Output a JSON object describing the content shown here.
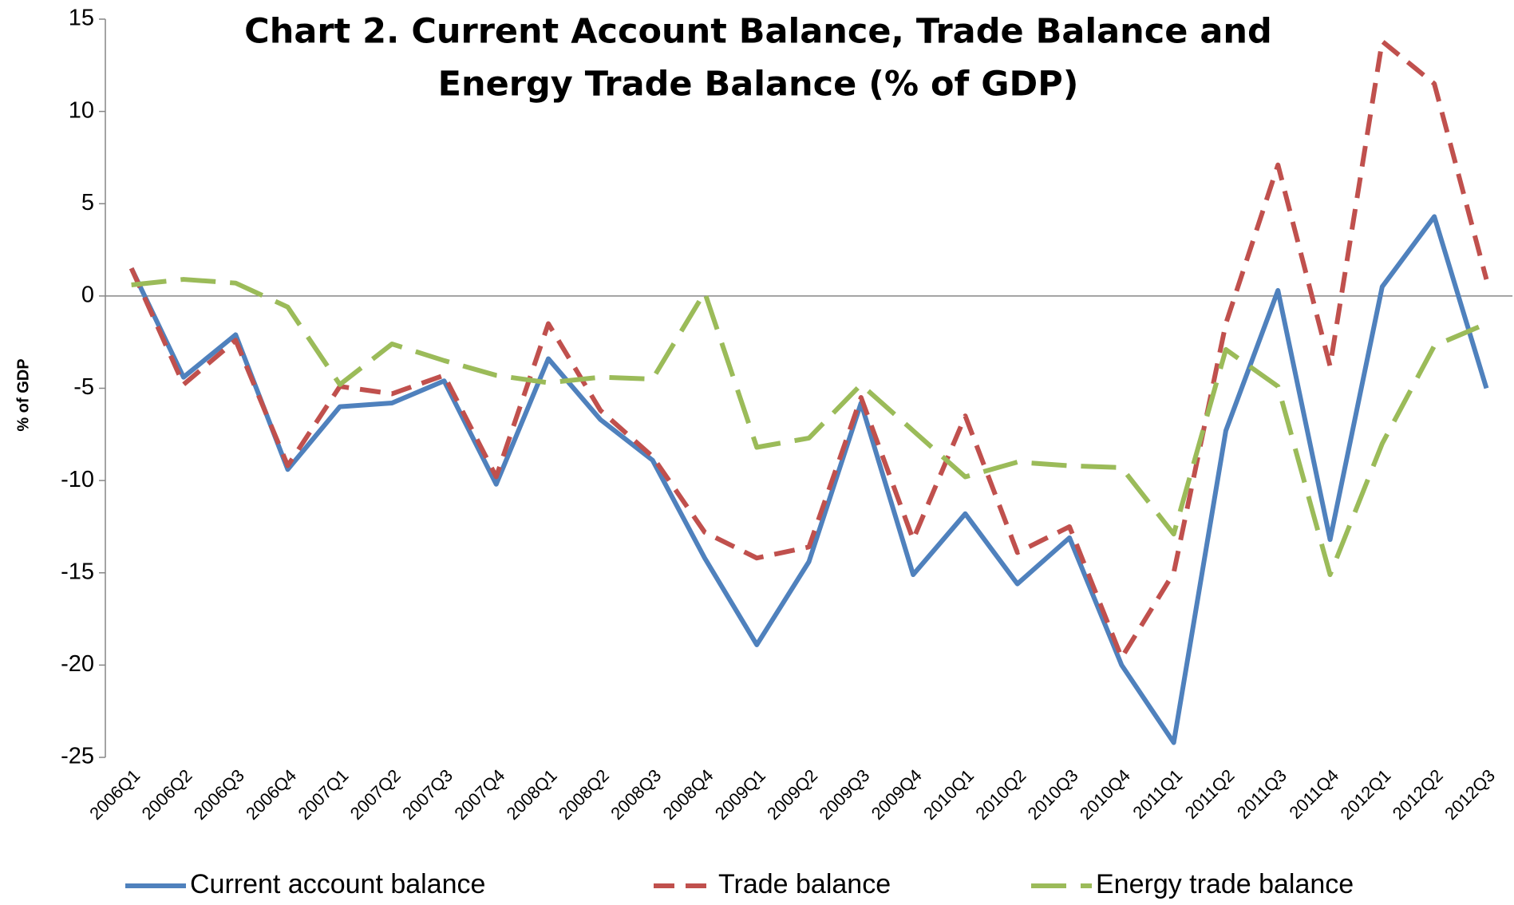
{
  "chart_data": {
    "type": "line",
    "title": [
      "Chart 2. Current Account Balance, Trade Balance and",
      "Energy Trade Balance (%  of GDP)"
    ],
    "ylabel": "% of GDP",
    "categories": [
      "2006Q1",
      "2006Q2",
      "2006Q3",
      "2006Q4",
      "2007Q1",
      "2007Q2",
      "2007Q3",
      "2007Q4",
      "2008Q1",
      "2008Q2",
      "2008Q3",
      "2008Q4",
      "2009Q1",
      "2009Q2",
      "2009Q3",
      "2009Q4",
      "2010Q1",
      "2010Q2",
      "2010Q3",
      "2010Q4",
      "2011Q1",
      "2011Q2",
      "2011Q3",
      "2011Q4",
      "2012Q1",
      "2012Q2",
      "2012Q3"
    ],
    "series": [
      {
        "name": "Current account balance",
        "color": "#4f81bd",
        "dash": "solid",
        "values": [
          1.5,
          -4.4,
          -2.1,
          -9.4,
          -6.0,
          -5.8,
          -4.6,
          -10.2,
          -3.4,
          -6.7,
          -8.9,
          -14.2,
          -18.9,
          -14.4,
          -5.8,
          -15.1,
          -11.8,
          -15.6,
          -13.1,
          -20.0,
          -24.2,
          -7.3,
          0.3,
          -13.2,
          0.5,
          4.3,
          -5.0
        ]
      },
      {
        "name": "Trade balance",
        "color": "#c0504d",
        "dash": "dashed",
        "values": [
          1.5,
          -4.8,
          -2.4,
          -9.2,
          -4.9,
          -5.3,
          -4.3,
          -9.8,
          -1.5,
          -6.2,
          -8.7,
          -12.8,
          -14.2,
          -13.6,
          -5.5,
          -13.2,
          -6.5,
          -13.9,
          -12.5,
          -19.6,
          -15.0,
          -1.5,
          7.1,
          -3.8,
          13.8,
          11.5,
          0.9
        ]
      },
      {
        "name": "Energy trade balance",
        "color": "#9bbb59",
        "dash": "longdash",
        "values": [
          0.6,
          0.9,
          0.7,
          -0.6,
          -4.8,
          -2.6,
          -3.5,
          -4.3,
          -4.7,
          -4.4,
          -4.5,
          0.2,
          -8.2,
          -7.7,
          -4.8,
          -7.3,
          -9.8,
          -9.0,
          -9.2,
          -9.3,
          -12.9,
          -2.9,
          -4.9,
          -15.1,
          -8.0,
          -2.7,
          -1.5
        ]
      }
    ],
    "ylim": [
      -25,
      15
    ],
    "yticks": [
      -25,
      -20,
      -15,
      -10,
      -5,
      0,
      5,
      10,
      15
    ]
  }
}
